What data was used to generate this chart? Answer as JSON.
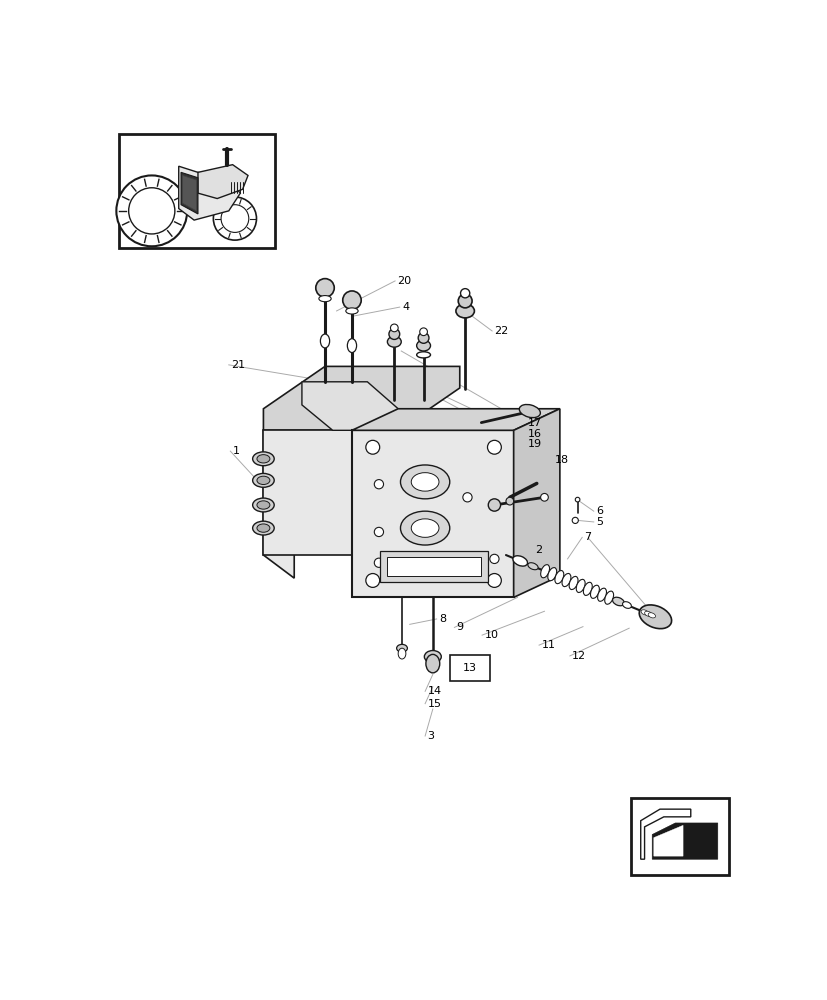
{
  "bg": "#ffffff",
  "lc": "#1a1a1a",
  "gc": "#aaaaaa",
  "labels": [
    [
      "1",
      165,
      430
    ],
    [
      "2",
      555,
      558
    ],
    [
      "3",
      418,
      800
    ],
    [
      "4",
      385,
      243
    ],
    [
      "5",
      635,
      520
    ],
    [
      "6",
      635,
      507
    ],
    [
      "7",
      620,
      540
    ],
    [
      "8",
      432,
      648
    ],
    [
      "9",
      455,
      658
    ],
    [
      "10",
      492,
      668
    ],
    [
      "11",
      565,
      682
    ],
    [
      "12",
      605,
      695
    ],
    [
      "13",
      465,
      700
    ],
    [
      "14",
      418,
      742
    ],
    [
      "15",
      418,
      757
    ],
    [
      "16",
      548,
      405
    ],
    [
      "17",
      548,
      390
    ],
    [
      "18",
      582,
      440
    ],
    [
      "19",
      548,
      418
    ],
    [
      "20",
      378,
      208
    ],
    [
      "21",
      163,
      315
    ],
    [
      "22",
      503,
      272
    ]
  ]
}
